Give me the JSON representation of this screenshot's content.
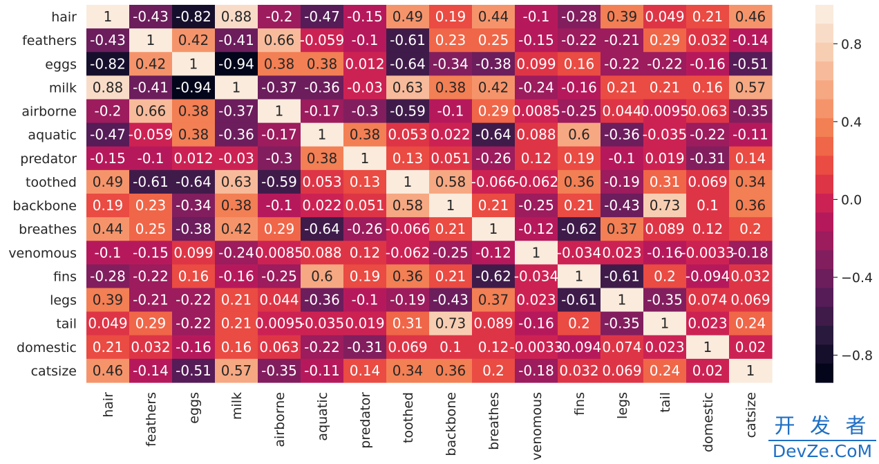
{
  "chart_data": {
    "type": "heatmap",
    "title": "",
    "xlabel": "",
    "ylabel": "",
    "labels": [
      "hair",
      "feathers",
      "eggs",
      "milk",
      "airborne",
      "aquatic",
      "predator",
      "toothed",
      "backbone",
      "breathes",
      "venomous",
      "fins",
      "legs",
      "tail",
      "domestic",
      "catsize"
    ],
    "values": [
      [
        1,
        -0.43,
        -0.82,
        0.88,
        -0.2,
        -0.47,
        -0.15,
        0.49,
        0.19,
        0.44,
        -0.1,
        -0.28,
        0.39,
        0.049,
        0.21,
        0.46
      ],
      [
        -0.43,
        1,
        0.42,
        -0.41,
        0.66,
        -0.059,
        -0.1,
        -0.61,
        0.23,
        0.25,
        -0.15,
        -0.22,
        -0.21,
        0.29,
        0.032,
        -0.14
      ],
      [
        -0.82,
        0.42,
        1,
        -0.94,
        0.38,
        0.38,
        0.012,
        -0.64,
        -0.34,
        -0.38,
        0.099,
        0.16,
        -0.22,
        -0.22,
        -0.16,
        -0.51
      ],
      [
        0.88,
        -0.41,
        -0.94,
        1,
        -0.37,
        -0.36,
        -0.03,
        0.63,
        0.38,
        0.42,
        -0.24,
        -0.16,
        0.21,
        0.21,
        0.16,
        0.57
      ],
      [
        -0.2,
        0.66,
        0.38,
        -0.37,
        1,
        -0.17,
        -0.3,
        -0.59,
        -0.1,
        0.29,
        0.0085,
        -0.25,
        0.044,
        0.0095,
        0.063,
        -0.35
      ],
      [
        -0.47,
        -0.059,
        0.38,
        -0.36,
        -0.17,
        1,
        0.38,
        0.053,
        0.022,
        -0.64,
        0.088,
        0.6,
        -0.36,
        -0.035,
        -0.22,
        -0.11
      ],
      [
        -0.15,
        -0.1,
        0.012,
        -0.03,
        -0.3,
        0.38,
        1,
        0.13,
        0.051,
        -0.26,
        0.12,
        0.19,
        -0.1,
        0.019,
        -0.31,
        0.14
      ],
      [
        0.49,
        -0.61,
        -0.64,
        0.63,
        -0.59,
        0.053,
        0.13,
        1,
        0.58,
        -0.066,
        -0.062,
        0.36,
        -0.19,
        0.31,
        0.069,
        0.34
      ],
      [
        0.19,
        0.23,
        -0.34,
        0.38,
        -0.1,
        0.022,
        0.051,
        0.58,
        1,
        0.21,
        -0.25,
        0.21,
        -0.43,
        0.73,
        0.1,
        0.36
      ],
      [
        0.44,
        0.25,
        -0.38,
        0.42,
        0.29,
        -0.64,
        -0.26,
        -0.066,
        0.21,
        1,
        -0.12,
        -0.62,
        0.37,
        0.089,
        0.12,
        0.2
      ],
      [
        -0.1,
        -0.15,
        0.099,
        -0.24,
        0.0085,
        0.088,
        0.12,
        -0.062,
        -0.25,
        -0.12,
        1,
        -0.034,
        0.023,
        -0.16,
        -0.0033,
        -0.18
      ],
      [
        -0.28,
        -0.22,
        0.16,
        -0.16,
        -0.25,
        0.6,
        0.19,
        0.36,
        0.21,
        -0.62,
        -0.034,
        1,
        -0.61,
        0.2,
        -0.094,
        0.032
      ],
      [
        0.39,
        -0.21,
        -0.22,
        0.21,
        0.044,
        -0.36,
        -0.1,
        -0.19,
        -0.43,
        0.37,
        0.023,
        -0.61,
        1,
        -0.35,
        0.074,
        0.069
      ],
      [
        0.049,
        0.29,
        -0.22,
        0.21,
        0.0095,
        -0.035,
        0.019,
        0.31,
        0.73,
        0.089,
        -0.16,
        0.2,
        -0.35,
        1,
        0.023,
        0.24
      ],
      [
        0.21,
        0.032,
        -0.16,
        0.16,
        0.063,
        -0.22,
        -0.31,
        0.069,
        0.1,
        0.12,
        -0.0033,
        -0.094,
        0.074,
        0.023,
        1,
        0.02
      ],
      [
        0.46,
        -0.14,
        -0.51,
        0.57,
        -0.35,
        -0.11,
        0.14,
        0.34,
        0.36,
        0.2,
        -0.18,
        0.032,
        0.069,
        0.24,
        0.02,
        1
      ]
    ],
    "annotations": [
      [
        "1",
        "-0.43",
        "-0.82",
        "0.88",
        "-0.2",
        "-0.47",
        "-0.15",
        "0.49",
        "0.19",
        "0.44",
        "-0.1",
        "-0.28",
        "0.39",
        "0.049",
        "0.21",
        "0.46"
      ],
      [
        "-0.43",
        "1",
        "0.42",
        "-0.41",
        "0.66",
        "-0.059",
        "-0.1",
        "-0.61",
        "0.23",
        "0.25",
        "-0.15",
        "-0.22",
        "-0.21",
        "0.29",
        "0.032",
        "-0.14"
      ],
      [
        "-0.82",
        "0.42",
        "1",
        "-0.94",
        "0.38",
        "0.38",
        "0.012",
        "-0.64",
        "-0.34",
        "-0.38",
        "0.099",
        "0.16",
        "-0.22",
        "-0.22",
        "-0.16",
        "-0.51"
      ],
      [
        "0.88",
        "-0.41",
        "-0.94",
        "1",
        "-0.37",
        "-0.36",
        "-0.03",
        "0.63",
        "0.38",
        "0.42",
        "-0.24",
        "-0.16",
        "0.21",
        "0.21",
        "0.16",
        "0.57"
      ],
      [
        "-0.2",
        "0.66",
        "0.38",
        "-0.37",
        "1",
        "-0.17",
        "-0.3",
        "-0.59",
        "-0.1",
        "0.29",
        "0.0085",
        "-0.25",
        "0.044",
        "0.0095",
        "0.063",
        "-0.35"
      ],
      [
        "-0.47",
        "-0.059",
        "0.38",
        "-0.36",
        "-0.17",
        "1",
        "0.38",
        "0.053",
        "0.022",
        "-0.64",
        "0.088",
        "0.6",
        "-0.36",
        "-0.035",
        "-0.22",
        "-0.11"
      ],
      [
        "-0.15",
        "-0.1",
        "0.012",
        "-0.03",
        "-0.3",
        "0.38",
        "1",
        "0.13",
        "0.051",
        "-0.26",
        "0.12",
        "0.19",
        "-0.1",
        "0.019",
        "-0.31",
        "0.14"
      ],
      [
        "0.49",
        "-0.61",
        "-0.64",
        "0.63",
        "-0.59",
        "0.053",
        "0.13",
        "1",
        "0.58",
        "-0.066",
        "-0.062",
        "0.36",
        "-0.19",
        "0.31",
        "0.069",
        "0.34"
      ],
      [
        "0.19",
        "0.23",
        "-0.34",
        "0.38",
        "-0.1",
        "0.022",
        "0.051",
        "0.58",
        "1",
        "0.21",
        "-0.25",
        "0.21",
        "-0.43",
        "0.73",
        "0.1",
        "0.36"
      ],
      [
        "0.44",
        "0.25",
        "-0.38",
        "0.42",
        "0.29",
        "-0.64",
        "-0.26",
        "-0.066",
        "0.21",
        "1",
        "-0.12",
        "-0.62",
        "0.37",
        "0.089",
        "0.12",
        "0.2"
      ],
      [
        "-0.1",
        "-0.15",
        "0.099",
        "-0.24",
        "0.0085",
        "0.088",
        "0.12",
        "-0.062",
        "-0.25",
        "-0.12",
        "1",
        "-0.034",
        "0.023",
        "-0.16",
        "-0.0033",
        "-0.18"
      ],
      [
        "-0.28",
        "-0.22",
        "0.16",
        "-0.16",
        "-0.25",
        "0.6",
        "0.19",
        "0.36",
        "0.21",
        "-0.62",
        "-0.034",
        "1",
        "-0.61",
        "0.2",
        "-0.094",
        "0.032"
      ],
      [
        "0.39",
        "-0.21",
        "-0.22",
        "0.21",
        "0.044",
        "-0.36",
        "-0.1",
        "-0.19",
        "-0.43",
        "0.37",
        "0.023",
        "-0.61",
        "1",
        "-0.35",
        "0.074",
        "0.069"
      ],
      [
        "0.049",
        "0.29",
        "-0.22",
        "0.21",
        "0.0095",
        "-0.035",
        "0.019",
        "0.31",
        "0.73",
        "0.089",
        "-0.16",
        "0.2",
        "-0.35",
        "1",
        "0.023",
        "0.24"
      ],
      [
        "0.21",
        "0.032",
        "-0.16",
        "0.16",
        "0.063",
        "-0.22",
        "-0.31",
        "0.069",
        "0.1",
        "0.12",
        "-0.0033",
        "-0.094",
        "0.074",
        "0.023",
        "1",
        "0.02"
      ],
      [
        "0.46",
        "-0.14",
        "-0.51",
        "0.57",
        "-0.35",
        "-0.11",
        "0.14",
        "0.34",
        "0.36",
        "0.2",
        "-0.18",
        "0.032",
        "0.069",
        "0.24",
        "0.02",
        "1"
      ]
    ],
    "colorbar": {
      "range": [
        -0.94,
        1
      ],
      "ticks": [
        0.8,
        0.4,
        0.0,
        -0.4,
        -0.8
      ],
      "tick_labels": [
        "0.8",
        "0.4",
        "0.0",
        "−0.4",
        "−0.8"
      ],
      "levels": 20
    },
    "colormap": [
      "#03051a",
      "#2b1b3f",
      "#5a1c5a",
      "#8a1e5f",
      "#c2185a",
      "#e83f3f",
      "#f3784c",
      "#f6a47d",
      "#f8ccb0",
      "#faebdd"
    ]
  },
  "watermark": {
    "line1": "开 发 者",
    "line2": "DevZe.CoM"
  }
}
